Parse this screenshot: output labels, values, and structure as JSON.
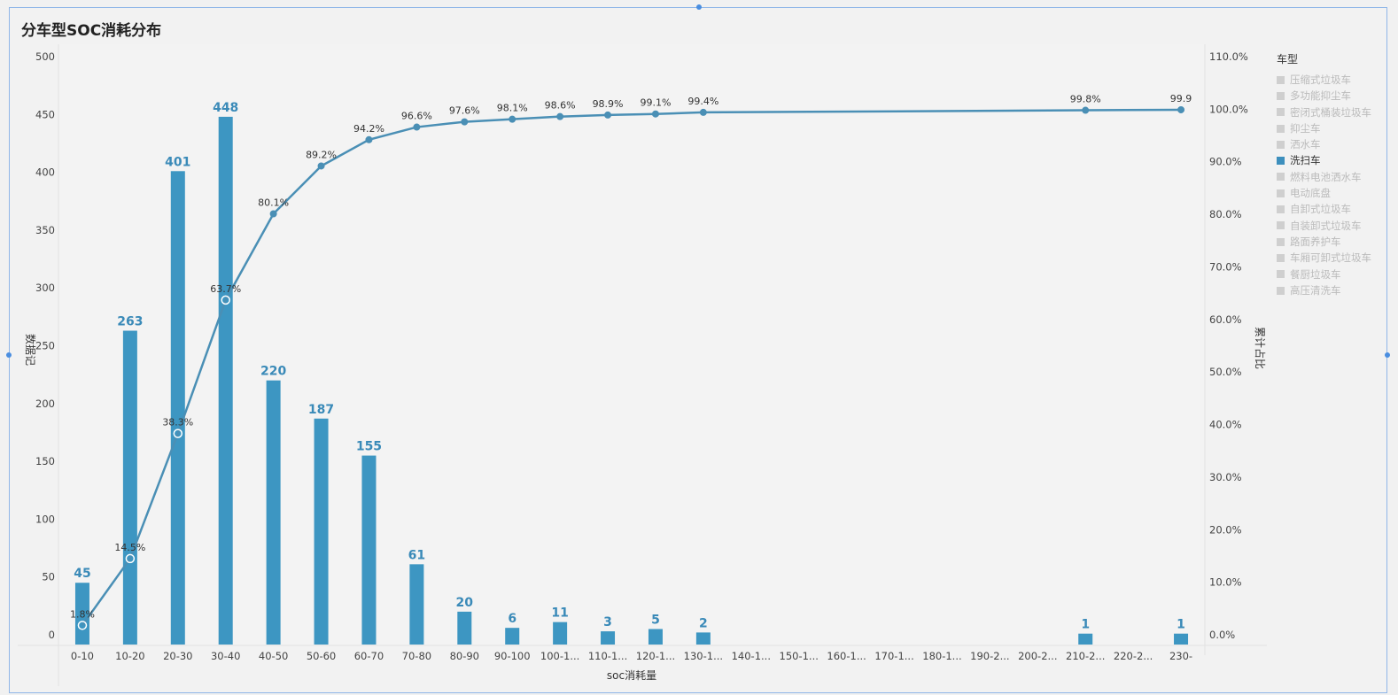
{
  "title": "分车型SOC消耗分布",
  "legend": {
    "title": "车型",
    "items": [
      {
        "label": "压缩式垃圾车",
        "active": false
      },
      {
        "label": "多功能抑尘车",
        "active": false
      },
      {
        "label": "密闭式桶装垃圾车",
        "active": false
      },
      {
        "label": "抑尘车",
        "active": false
      },
      {
        "label": "洒水车",
        "active": false
      },
      {
        "label": "洗扫车",
        "active": true
      },
      {
        "label": "燃料电池洒水车",
        "active": false
      },
      {
        "label": "电动底盘",
        "active": false
      },
      {
        "label": "自卸式垃圾车",
        "active": false
      },
      {
        "label": "自装卸式垃圾车",
        "active": false
      },
      {
        "label": "路面养护车",
        "active": false
      },
      {
        "label": "车厢可卸式垃圾车",
        "active": false
      },
      {
        "label": "餐厨垃圾车",
        "active": false
      },
      {
        "label": "高压清洗车",
        "active": false
      }
    ]
  },
  "chart_data": {
    "type": "bar",
    "xlabel": "soc消耗量",
    "ylabel": "数据记",
    "y2label": "累计占比",
    "ylim": [
      0,
      500
    ],
    "y2lim": [
      0,
      110
    ],
    "yticks": [
      "0",
      "50",
      "100",
      "150",
      "200",
      "250",
      "300",
      "350",
      "400",
      "450",
      "500"
    ],
    "y2ticks": [
      "0.0%",
      "10.0%",
      "20.0%",
      "30.0%",
      "40.0%",
      "50.0%",
      "60.0%",
      "70.0%",
      "80.0%",
      "90.0%",
      "100.0%",
      "110.0%"
    ],
    "categories": [
      "0-10",
      "10-20",
      "20-30",
      "30-40",
      "40-50",
      "50-60",
      "60-70",
      "70-80",
      "80-90",
      "90-100",
      "100-1...",
      "110-1...",
      "120-1...",
      "130-1...",
      "140-1...",
      "150-1...",
      "160-1...",
      "170-1...",
      "180-1...",
      "190-2...",
      "200-2...",
      "210-2...",
      "220-2...",
      "230-"
    ],
    "series": [
      {
        "values": [
          45,
          263,
          401,
          448,
          220,
          187,
          155,
          61,
          20,
          6,
          11,
          3,
          5,
          2,
          0,
          0,
          0,
          0,
          0,
          0,
          0,
          1,
          0,
          1
        ],
        "labels": [
          "45",
          "263",
          "401",
          "448",
          "220",
          "187",
          "155",
          "61",
          "20",
          "6",
          "11",
          "3",
          "5",
          "2",
          "",
          "",
          "",
          "",
          "",
          "",
          "",
          "1",
          "",
          "1"
        ]
      },
      {
        "values": [
          1.8,
          14.5,
          38.3,
          63.7,
          80.1,
          89.2,
          94.2,
          96.6,
          97.6,
          98.1,
          98.6,
          98.9,
          99.1,
          99.4,
          null,
          null,
          null,
          null,
          null,
          null,
          null,
          99.8,
          null,
          99.9
        ],
        "labels": [
          "1.8%",
          "14.5%",
          "38.3%",
          "63.7%",
          "80.1%",
          "89.2%",
          "94.2%",
          "96.6%",
          "97.6%",
          "98.1%",
          "98.6%",
          "98.9%",
          "99.1%",
          "99.4%",
          "",
          "",
          "",
          "",
          "",
          "",
          "",
          "99.8%",
          "",
          "99.9"
        ]
      }
    ],
    "colors": {
      "bar": "#3d96c2",
      "line": "#4a8fb5",
      "label": "#3a8ab8"
    }
  }
}
